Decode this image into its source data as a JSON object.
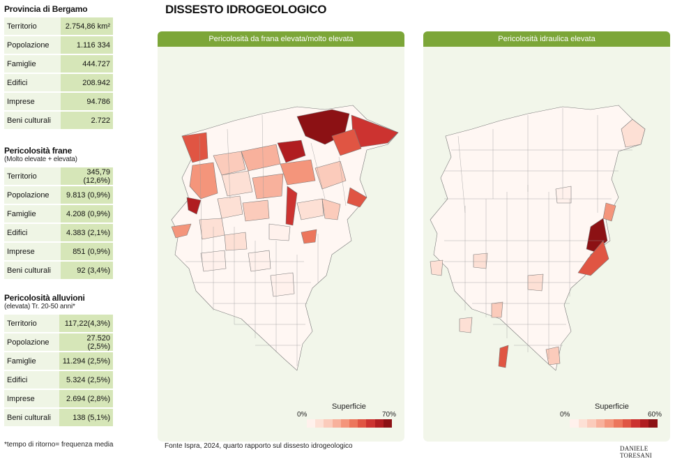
{
  "headline": "DISSESTO IDROGEOLOGICO",
  "province": {
    "title": "Provincia di Bergamo",
    "rows": [
      {
        "label": "Territorio",
        "value": "2.754,86 km²"
      },
      {
        "label": "Popolazione",
        "value": "1.116 334"
      },
      {
        "label": "Famiglie",
        "value": "444.727"
      },
      {
        "label": "Edifici",
        "value": "208.942"
      },
      {
        "label": "Imprese",
        "value": "94.786"
      },
      {
        "label": "Beni culturali",
        "value": "2.722"
      }
    ]
  },
  "landslide": {
    "title": "Pericolosità frane",
    "subtitle": "(Molto elevate + elevata)",
    "rows": [
      {
        "label": "Territorio",
        "value": "345,79 (12,6%)"
      },
      {
        "label": "Popolazione",
        "value": "9.813 (0,9%)"
      },
      {
        "label": "Famiglie",
        "value": "4.208 (0,9%)"
      },
      {
        "label": "Edifici",
        "value": "4.383 (2,1%)"
      },
      {
        "label": "Imprese",
        "value": "851 (0,9%)"
      },
      {
        "label": "Beni culturali",
        "value": "92 (3,4%)"
      }
    ]
  },
  "flood": {
    "title": "Pericolosità alluvioni",
    "subtitle": "(elevata) Tr. 20-50 anni*",
    "rows": [
      {
        "label": "Territorio",
        "value": "117,22(4,3%)"
      },
      {
        "label": "Popolazione",
        "value": "27.520 (2,5%)"
      },
      {
        "label": "Famiglie",
        "value": "11.294 (2,5%)"
      },
      {
        "label": "Edifici",
        "value": "5.324 (2,5%)"
      },
      {
        "label": "Imprese",
        "value": "2.694 (2,8%)"
      },
      {
        "label": "Beni culturali",
        "value": "138 (5,1%)"
      }
    ]
  },
  "footnote": "*tempo di ritorno= frequenza media",
  "map_left": {
    "title": "Pericolosità da frana elevata/molto elevata",
    "legend": {
      "title": "Superficie",
      "min": "0%",
      "max": "70%"
    }
  },
  "map_right": {
    "title": "Pericolosità idraulica elevata",
    "legend": {
      "title": "Superficie",
      "min": "0%",
      "max": "60%"
    }
  },
  "source": "Fonte Ispra, 2024, quarto rapporto sul dissesto idrogeologico",
  "signature": "DANIELE TORESANI",
  "colors": {
    "panel_header": "#7ca638",
    "panel_bg": "#f2f6ea",
    "table_label_bg": "#eff5e5",
    "table_value_bg": "#d6e6b8",
    "ramp": [
      "#fff1ec",
      "#fde0d5",
      "#fbcbbb",
      "#f8b19c",
      "#f4957b",
      "#ec765c",
      "#e05543",
      "#cc3330",
      "#b01d20",
      "#8c1114"
    ]
  }
}
